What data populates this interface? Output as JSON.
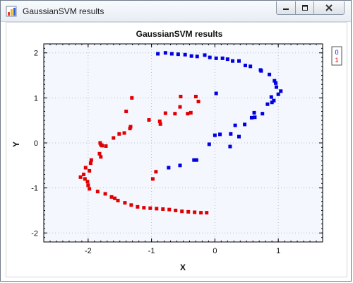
{
  "window": {
    "title": "GaussianSVM results",
    "app_icon": "app-icon",
    "controls": [
      "minimize-icon",
      "maximize-icon",
      "close-icon"
    ]
  },
  "chart_data": {
    "type": "scatter",
    "title": "GaussianSVM results",
    "xlabel": "X",
    "ylabel": "Y",
    "xlim": [
      -2.7,
      1.7
    ],
    "ylim": [
      -2.2,
      2.2
    ],
    "xticks": [
      -2,
      -1,
      0,
      1
    ],
    "yticks": [
      -2,
      -1,
      0,
      1,
      2
    ],
    "grid": true,
    "legend_position": "top-right",
    "background": "#f5f7ff",
    "series": [
      {
        "name": "0",
        "color": "#0000e0",
        "points": [
          [
            -0.9,
            1.98
          ],
          [
            -0.78,
            2.0
          ],
          [
            -0.68,
            1.98
          ],
          [
            -0.58,
            1.97
          ],
          [
            -0.47,
            1.96
          ],
          [
            -0.37,
            1.93
          ],
          [
            -0.28,
            1.92
          ],
          [
            -0.16,
            1.95
          ],
          [
            -0.08,
            1.9
          ],
          [
            0.02,
            1.88
          ],
          [
            0.12,
            1.88
          ],
          [
            0.2,
            1.86
          ],
          [
            0.28,
            1.82
          ],
          [
            0.38,
            1.82
          ],
          [
            0.48,
            1.72
          ],
          [
            0.56,
            1.7
          ],
          [
            0.72,
            1.62
          ],
          [
            0.73,
            1.6
          ],
          [
            0.86,
            1.52
          ],
          [
            0.94,
            1.38
          ],
          [
            0.96,
            1.33
          ],
          [
            0.97,
            1.24
          ],
          [
            1.04,
            1.15
          ],
          [
            1.0,
            1.08
          ],
          [
            0.89,
            1.02
          ],
          [
            0.93,
            0.94
          ],
          [
            0.9,
            0.9
          ],
          [
            0.83,
            0.86
          ],
          [
            0.62,
            0.67
          ],
          [
            0.75,
            0.65
          ],
          [
            0.63,
            0.57
          ],
          [
            0.58,
            0.56
          ],
          [
            0.47,
            0.41
          ],
          [
            0.32,
            0.39
          ],
          [
            0.25,
            0.2
          ],
          [
            0.08,
            0.19
          ],
          [
            0.0,
            0.17
          ],
          [
            0.38,
            0.14
          ],
          [
            -0.09,
            -0.03
          ],
          [
            0.24,
            -0.08
          ],
          [
            0.02,
            1.1
          ],
          [
            -0.33,
            -0.38
          ],
          [
            -0.29,
            -0.38
          ],
          [
            -0.55,
            -0.5
          ],
          [
            -0.73,
            -0.55
          ]
        ]
      },
      {
        "name": "1",
        "color": "#e00000",
        "points": [
          [
            -0.54,
            1.03
          ],
          [
            -0.3,
            1.03
          ],
          [
            -0.26,
            0.92
          ],
          [
            -0.55,
            0.8
          ],
          [
            -0.43,
            0.65
          ],
          [
            -0.38,
            0.67
          ],
          [
            -0.63,
            0.65
          ],
          [
            -0.78,
            0.66
          ],
          [
            -0.87,
            0.48
          ],
          [
            -0.86,
            0.42
          ],
          [
            -1.04,
            0.51
          ],
          [
            -1.33,
            0.36
          ],
          [
            -1.34,
            0.32
          ],
          [
            -1.43,
            0.22
          ],
          [
            -1.51,
            0.2
          ],
          [
            -1.6,
            0.11
          ],
          [
            -1.81,
            0.0
          ],
          [
            -1.8,
            -0.04
          ],
          [
            -1.78,
            -0.06
          ],
          [
            -1.72,
            -0.07
          ],
          [
            -1.82,
            -0.24
          ],
          [
            -1.8,
            -0.31
          ],
          [
            -1.95,
            -0.38
          ],
          [
            -1.96,
            -0.45
          ],
          [
            -2.04,
            -0.55
          ],
          [
            -1.98,
            -0.62
          ],
          [
            -2.07,
            -0.7
          ],
          [
            -2.12,
            -0.76
          ],
          [
            -2.05,
            -0.8
          ],
          [
            -2.01,
            -0.86
          ],
          [
            -2.0,
            -0.94
          ],
          [
            -1.98,
            -1.02
          ],
          [
            -1.85,
            -1.08
          ],
          [
            -1.73,
            -1.13
          ],
          [
            -1.63,
            -1.2
          ],
          [
            -1.58,
            -1.23
          ],
          [
            -1.53,
            -1.28
          ],
          [
            -1.42,
            -1.33
          ],
          [
            -1.32,
            -1.38
          ],
          [
            -1.22,
            -1.42
          ],
          [
            -1.12,
            -1.44
          ],
          [
            -1.02,
            -1.45
          ],
          [
            -0.92,
            -1.46
          ],
          [
            -0.82,
            -1.47
          ],
          [
            -0.72,
            -1.48
          ],
          [
            -0.62,
            -1.5
          ],
          [
            -0.52,
            -1.52
          ],
          [
            -0.42,
            -1.53
          ],
          [
            -0.32,
            -1.54
          ],
          [
            -0.22,
            -1.55
          ],
          [
            -0.13,
            -1.55
          ],
          [
            -0.93,
            -0.64
          ],
          [
            -0.98,
            -0.8
          ],
          [
            -1.31,
            1.0
          ],
          [
            -1.4,
            0.7
          ]
        ]
      }
    ]
  }
}
